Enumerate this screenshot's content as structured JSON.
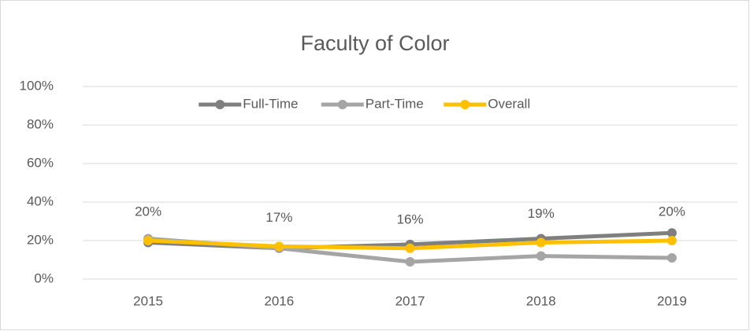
{
  "chart_data": {
    "type": "line",
    "title": "Faculty of Color",
    "categories": [
      "2015",
      "2016",
      "2017",
      "2018",
      "2019"
    ],
    "series": [
      {
        "name": "Full-Time",
        "color": "#7f7f7f",
        "values": [
          19,
          16,
          18,
          21,
          24
        ]
      },
      {
        "name": "Part-Time",
        "color": "#a5a5a5",
        "values": [
          21,
          16,
          9,
          12,
          11
        ]
      },
      {
        "name": "Overall",
        "color": "#ffc000",
        "values": [
          20,
          17,
          16,
          19,
          20
        ],
        "value_labels": [
          "20%",
          "17%",
          "16%",
          "19%",
          "20%"
        ]
      }
    ],
    "ylim": [
      0,
      100
    ],
    "yticks": [
      {
        "value": 0,
        "label": "0%"
      },
      {
        "value": 20,
        "label": "20%"
      },
      {
        "value": 40,
        "label": "40%"
      },
      {
        "value": 60,
        "label": "60%"
      },
      {
        "value": 80,
        "label": "80%"
      },
      {
        "value": 100,
        "label": "100%"
      }
    ],
    "grid": true,
    "legend": "top"
  }
}
